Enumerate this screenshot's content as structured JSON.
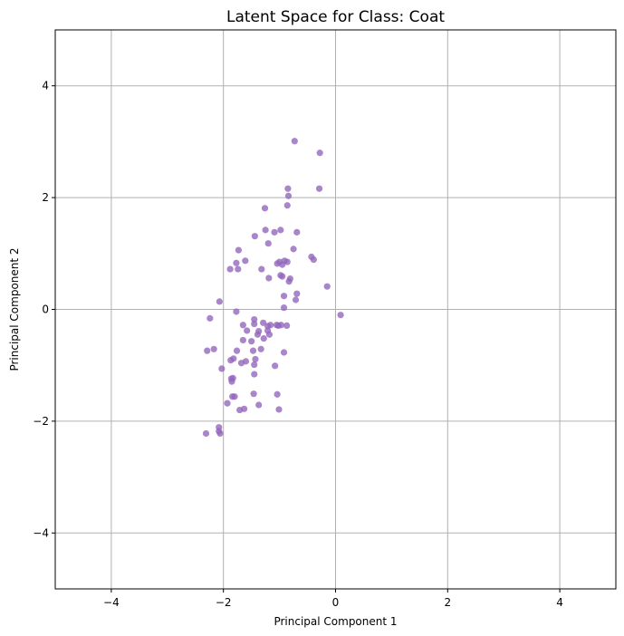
{
  "chart_data": {
    "type": "scatter",
    "title": "Latent Space for Class: Coat",
    "xlabel": "Principal Component 1",
    "ylabel": "Principal Component 2",
    "xlim": [
      -5,
      5
    ],
    "ylim": [
      -5,
      5
    ],
    "xticks": [
      -4,
      -2,
      0,
      2,
      4
    ],
    "yticks": [
      -4,
      -2,
      0,
      2,
      4
    ],
    "xtick_labels": [
      "−4",
      "−2",
      "0",
      "2",
      "4"
    ],
    "ytick_labels": [
      "−4",
      "−2",
      "0",
      "2",
      "4"
    ],
    "grid": true,
    "marker_color": "#9467bd",
    "series": [
      {
        "x": [
          -0.73,
          -0.28,
          -0.85,
          -0.29,
          -0.84,
          -0.86,
          -1.26,
          -0.98,
          -1.09,
          -1.25,
          -0.69,
          -1.44,
          -1.2,
          -0.75,
          -1.73,
          -1.61,
          -0.43,
          -0.39,
          -1.77,
          -1.04,
          -1.0,
          -0.91,
          -0.86,
          -0.95,
          -1.88,
          -1.74,
          -1.32,
          -0.81,
          -0.83,
          -0.15,
          -1.19,
          -0.69,
          -0.95,
          -0.98,
          -0.71,
          -2.07,
          -0.92,
          -0.92,
          -1.77,
          0.09,
          -2.24,
          -1.45,
          -1.29,
          -1.05,
          -1.16,
          -0.97,
          -0.87,
          -1.02,
          -1.65,
          -1.21,
          -1.45,
          -1.21,
          -1.58,
          -1.65,
          -1.39,
          -1.37,
          -1.18,
          -1.28,
          -1.5,
          -1.33,
          -0.92,
          -1.76,
          -2.29,
          -2.17,
          -1.82,
          -1.87,
          -1.6,
          -1.08,
          -2.03,
          -1.43,
          -1.45,
          -1.47,
          -1.45,
          -1.68,
          -1.86,
          -1.85,
          -1.83,
          -1.04,
          -1.46,
          -1.84,
          -1.8,
          -1.93,
          -1.37,
          -1.71,
          -1.63,
          -1.01,
          -2.08,
          -2.08,
          -2.31,
          -2.06
        ],
        "y": [
          3.01,
          2.8,
          2.16,
          2.16,
          2.03,
          1.86,
          1.81,
          1.42,
          1.38,
          1.42,
          1.38,
          1.31,
          1.18,
          1.08,
          1.06,
          0.87,
          0.94,
          0.89,
          0.83,
          0.82,
          0.85,
          0.87,
          0.85,
          0.8,
          0.72,
          0.72,
          0.72,
          0.55,
          0.5,
          0.41,
          0.56,
          0.28,
          0.59,
          0.61,
          0.17,
          0.14,
          0.24,
          0.03,
          -0.04,
          -0.1,
          -0.16,
          -0.18,
          -0.24,
          -0.28,
          -0.28,
          -0.28,
          -0.29,
          -0.29,
          -0.28,
          -0.3,
          -0.26,
          -0.38,
          -0.38,
          -0.55,
          -0.45,
          -0.39,
          -0.45,
          -0.52,
          -0.57,
          -0.71,
          -0.77,
          -0.74,
          -0.74,
          -0.71,
          -0.88,
          -0.91,
          -0.93,
          -1.01,
          -1.06,
          -0.89,
          -0.99,
          -0.74,
          -1.16,
          -0.96,
          -1.24,
          -1.29,
          -1.23,
          -1.52,
          -1.51,
          -1.56,
          -1.56,
          -1.68,
          -1.71,
          -1.8,
          -1.78,
          -1.79,
          -2.11,
          -2.18,
          -2.22,
          -2.22
        ]
      }
    ]
  }
}
